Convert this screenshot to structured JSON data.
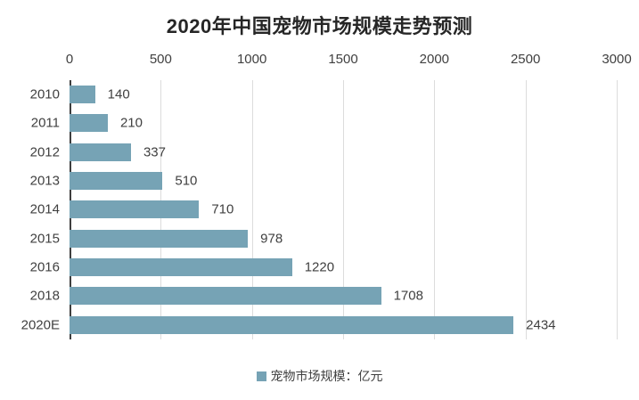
{
  "chart_data": {
    "type": "bar",
    "orientation": "horizontal",
    "title": "2020年中国宠物市场规模走势预测",
    "categories": [
      "2010",
      "2011",
      "2012",
      "2013",
      "2014",
      "2015",
      "2016",
      "2018",
      "2020E"
    ],
    "values": [
      140,
      210,
      337,
      510,
      710,
      978,
      1220,
      1708,
      2434
    ],
    "xlim": [
      0,
      3000
    ],
    "x_ticks": [
      0,
      500,
      1000,
      1500,
      2000,
      2500,
      3000
    ],
    "grid": "vertical",
    "value_labels_shown": true,
    "legend": {
      "label": "宠物市场规模：亿元",
      "position": "bottom"
    },
    "colors": {
      "bar": "#76A3B5",
      "grid": "#DCDCDC",
      "axis": "#3F3F3F",
      "text": "#404040",
      "title": "#262626",
      "background": "#FFFFFF"
    }
  }
}
